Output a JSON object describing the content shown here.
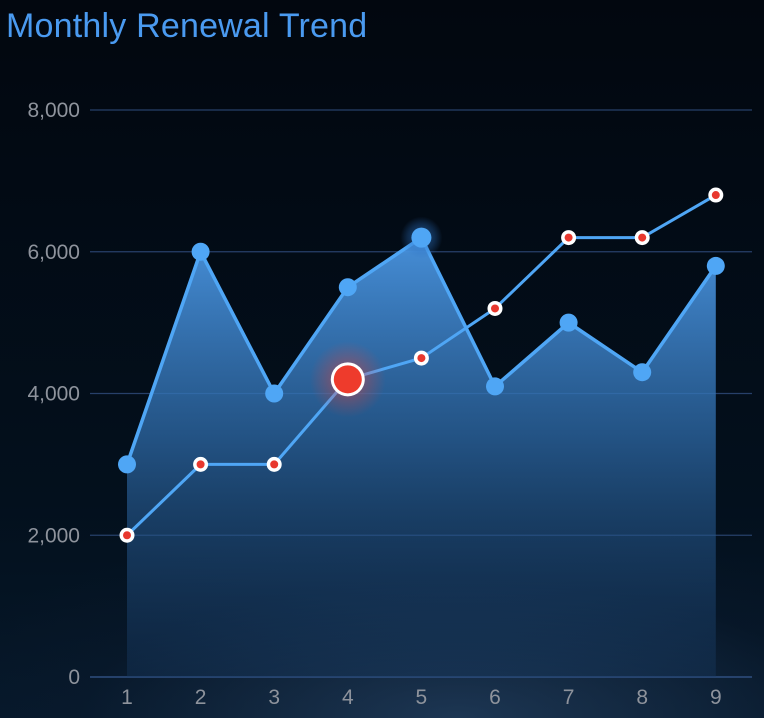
{
  "title": "Monthly Renewal Trend",
  "colors": {
    "series_primary": "#4fa6f5",
    "series_secondary_line": "#4fa6f5",
    "series_secondary_marker": "#e8382e",
    "highlight_red": "#ee3b2c",
    "grid": "#27406a",
    "axis_text": "#8e939c",
    "title": "#4a9af0"
  },
  "chart_data": {
    "type": "line",
    "title": "Monthly Renewal Trend",
    "x": [
      "1",
      "2",
      "3",
      "4",
      "5",
      "6",
      "7",
      "8",
      "9"
    ],
    "ylim": [
      0,
      8000
    ],
    "yticks": [
      "0",
      "2,000",
      "4,000",
      "6,000",
      "8,000"
    ],
    "ytick_values": [
      0,
      2000,
      4000,
      6000,
      8000
    ],
    "grid": true,
    "series": [
      {
        "style": "area",
        "values": [
          3000,
          6000,
          4000,
          5500,
          6200,
          4100,
          5000,
          4300,
          5800
        ],
        "highlight_index": 4
      },
      {
        "style": "line",
        "values": [
          2000,
          3000,
          3000,
          4200,
          4500,
          5200,
          6200,
          6200,
          6800
        ],
        "highlight_index": 3
      }
    ]
  }
}
